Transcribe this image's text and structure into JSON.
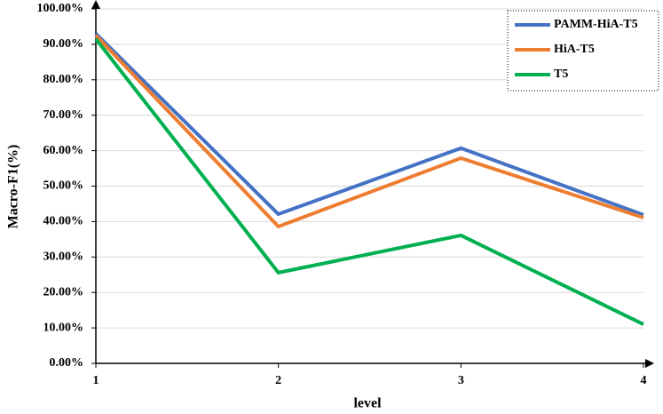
{
  "chart_data": {
    "type": "line",
    "x_label": "level",
    "y_label": "Macro-F1(%)",
    "x": [
      1,
      2,
      3,
      4
    ],
    "xlim": [
      1,
      4
    ],
    "xticks": [
      1,
      2,
      3,
      4
    ],
    "ylim": [
      0,
      100
    ],
    "yticks": [
      {
        "value": 0,
        "label": "0.00%"
      },
      {
        "value": 10,
        "label": "10.00%"
      },
      {
        "value": 20,
        "label": "20.00%"
      },
      {
        "value": 30,
        "label": "30.00%"
      },
      {
        "value": 40,
        "label": "40.00%"
      },
      {
        "value": 50,
        "label": "50.00%"
      },
      {
        "value": 60,
        "label": "60.00%"
      },
      {
        "value": 70,
        "label": "70.00%"
      },
      {
        "value": 80,
        "label": "80.00%"
      },
      {
        "value": 90,
        "label": "90.00%"
      },
      {
        "value": 100,
        "label": "100.00%"
      }
    ],
    "grid": true,
    "legend": "top-right",
    "series": [
      {
        "name": "PAMM-HiA-T5",
        "color": "#4472c4",
        "values": [
          93.0,
          42.1,
          60.7,
          41.9
        ]
      },
      {
        "name": "HiA-T5",
        "color": "#ed7d31",
        "values": [
          92.5,
          38.6,
          57.9,
          41.1
        ]
      },
      {
        "name": "T5",
        "color": "#00b050",
        "values": [
          91.5,
          25.6,
          36.1,
          11.0
        ]
      }
    ]
  }
}
